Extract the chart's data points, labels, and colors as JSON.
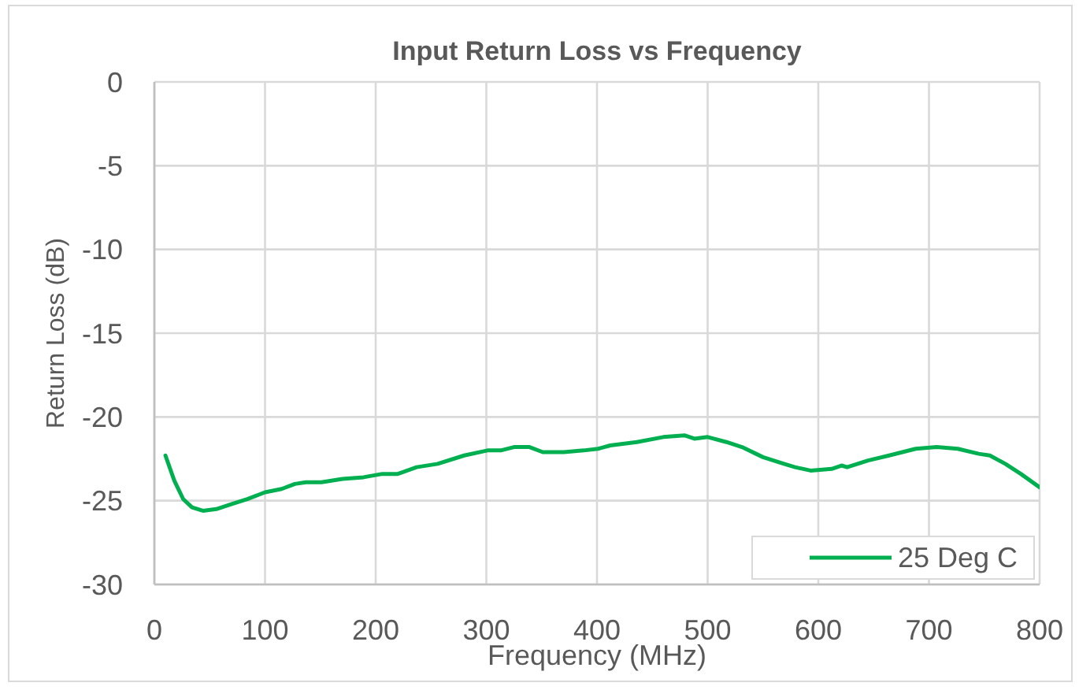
{
  "chart_data": {
    "type": "line",
    "title": "Input Return Loss vs Frequency",
    "xlabel": "Frequency (MHz)",
    "ylabel": "Return Loss (dB)",
    "x": [
      10,
      18,
      26,
      34,
      44,
      56,
      70,
      84,
      100,
      115,
      127,
      137,
      151,
      170,
      189,
      206,
      220,
      237,
      256,
      280,
      301,
      313,
      325,
      339,
      351,
      370,
      388,
      401,
      412,
      436,
      460,
      479,
      488,
      500,
      517,
      531,
      550,
      569,
      579,
      593,
      612,
      621,
      626,
      645,
      664,
      688,
      707,
      726,
      745,
      755,
      769,
      783,
      800
    ],
    "series": [
      {
        "name": "25 Deg C",
        "color": "#00b050",
        "values": [
          -22.3,
          -23.8,
          -24.9,
          -25.4,
          -25.6,
          -25.5,
          -25.2,
          -24.9,
          -24.5,
          -24.3,
          -24.0,
          -23.9,
          -23.9,
          -23.7,
          -23.6,
          -23.4,
          -23.4,
          -23.0,
          -22.8,
          -22.3,
          -22.0,
          -22.0,
          -21.8,
          -21.8,
          -22.1,
          -22.1,
          -22.0,
          -21.9,
          -21.7,
          -21.5,
          -21.2,
          -21.1,
          -21.3,
          -21.2,
          -21.5,
          -21.8,
          -22.4,
          -22.8,
          -23.0,
          -23.2,
          -23.1,
          -22.9,
          -23.0,
          -22.6,
          -22.3,
          -21.9,
          -21.8,
          -21.9,
          -22.2,
          -22.3,
          -22.8,
          -23.4,
          -24.2
        ]
      }
    ],
    "xlim": [
      0,
      800
    ],
    "xticks": [
      0,
      100,
      200,
      300,
      400,
      500,
      600,
      700,
      800
    ],
    "ylim": [
      -30,
      0
    ],
    "yticks": [
      -30,
      -25,
      -20,
      -15,
      -10,
      -5,
      0
    ],
    "grid": true,
    "legend": "bottom right"
  }
}
